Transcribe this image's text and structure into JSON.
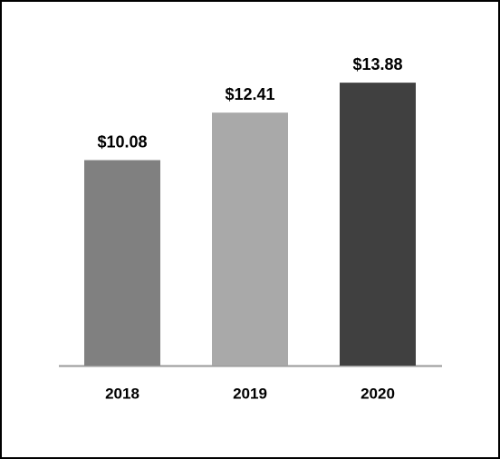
{
  "chart_data": {
    "type": "bar",
    "categories": [
      "2018",
      "2019",
      "2020"
    ],
    "values": [
      10.08,
      12.41,
      13.88
    ],
    "value_labels": [
      "$10.08",
      "$12.41",
      "$13.88"
    ],
    "colors": [
      "#808080",
      "#a9a9a9",
      "#404040"
    ],
    "ylim": [
      0,
      16
    ]
  }
}
